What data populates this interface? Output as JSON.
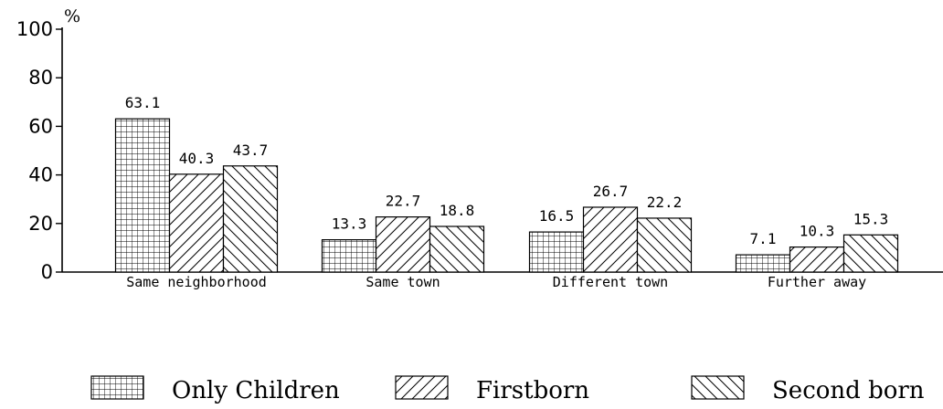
{
  "chart_data": {
    "type": "bar",
    "categories": [
      "Same neighborhood",
      "Same town",
      "Different town",
      "Further away"
    ],
    "series": [
      {
        "name": "Only Children",
        "values": [
          63.1,
          13.3,
          16.5,
          7.1
        ],
        "pattern": "grid"
      },
      {
        "name": "Firstborn",
        "values": [
          40.3,
          22.7,
          26.7,
          10.3
        ],
        "pattern": "diag-up"
      },
      {
        "name": "Second born",
        "values": [
          43.7,
          18.8,
          22.2,
          15.3
        ],
        "pattern": "diag-down"
      }
    ],
    "ylabel": "%",
    "ylim": [
      0,
      100
    ],
    "yticks": [
      0,
      20,
      40,
      60,
      80,
      100
    ],
    "grid": false,
    "legend_position": "bottom",
    "colors": {
      "stroke": "#000000",
      "fill": "#ffffff"
    }
  }
}
